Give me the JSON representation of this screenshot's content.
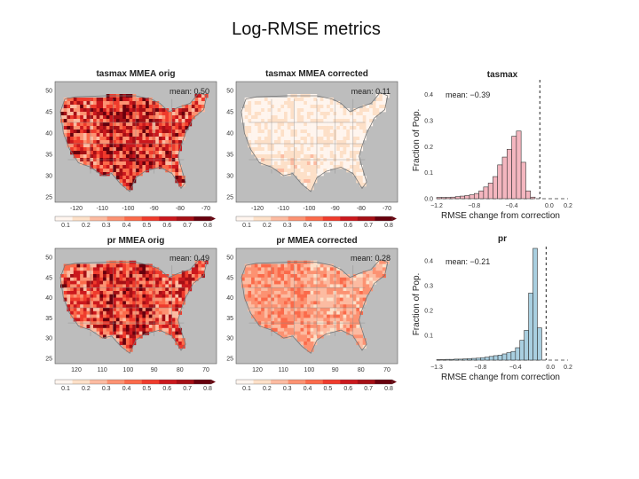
{
  "slide": {
    "title": "Log-RMSE metrics"
  },
  "colors": {
    "map_scale": [
      "#fff5ee",
      "#fde0c8",
      "#fcbba1",
      "#fc9272",
      "#fb6a4a",
      "#ef3b2c",
      "#cb181d",
      "#a50f15",
      "#67000d"
    ],
    "map_background": "#bdbdbd",
    "tasmax_bar": "#f4b6bf",
    "pr_bar": "#a9cfe0"
  },
  "maps": [
    {
      "title": "tasmax MMEA orig",
      "mean_label": "mean: 0.50",
      "mean": 0.5,
      "ytick_labels": [
        "50",
        "45",
        "40",
        "35",
        "30",
        "25"
      ],
      "xtick_labels": [
        "-120",
        "-110",
        "-100",
        "-90",
        "-80",
        "-70"
      ],
      "colorbar_labels": [
        "0.1",
        "0.2",
        "0.3",
        "0.4",
        "0.5",
        "0.6",
        "0.7",
        "0.8"
      ]
    },
    {
      "title": "tasmax MMEA corrected",
      "mean_label": "mean: 0.11",
      "mean": 0.11,
      "ytick_labels": [
        "50",
        "45",
        "40",
        "35",
        "30",
        "25"
      ],
      "xtick_labels": [
        "-120",
        "-110",
        "-100",
        "-90",
        "-80",
        "-70"
      ],
      "colorbar_labels": [
        "0.1",
        "0.2",
        "0.3",
        "0.4",
        "0.5",
        "0.6",
        "0.7",
        "0.8"
      ]
    },
    {
      "title": "pr MMEA orig",
      "mean_label": "mean: 0.49",
      "mean": 0.49,
      "ytick_labels": [
        "50",
        "45",
        "40",
        "35",
        "30",
        "25"
      ],
      "xtick_labels": [
        "120",
        "110",
        "100",
        "90",
        "80",
        "70"
      ],
      "colorbar_labels": [
        "0.1",
        "0.2",
        "0.3",
        "0.4",
        "0.5",
        "0.6",
        "0.7",
        "0.8"
      ]
    },
    {
      "title": "pr MMEA corrected",
      "mean_label": "mean: 0.28",
      "mean": 0.28,
      "ytick_labels": [
        "50",
        "45",
        "40",
        "35",
        "30",
        "25"
      ],
      "xtick_labels": [
        "120",
        "110",
        "100",
        "90",
        "80",
        "70"
      ],
      "colorbar_labels": [
        "0.1",
        "0.2",
        "0.3",
        "0.4",
        "0.5",
        "0.6",
        "0.7",
        "0.8"
      ]
    }
  ],
  "chart_data": [
    {
      "type": "bar",
      "title": "tasmax",
      "mean_label": "mean: −0.39",
      "xlabel": "RMSE change from correction",
      "ylabel": "Fraction of Pop.",
      "xlim": [
        -1.2,
        0.2
      ],
      "ylim": [
        0,
        0.45
      ],
      "xtick_labels": [
        "−1.2",
        "−0.8",
        "−0.4",
        "0.0",
        "0.2"
      ],
      "ytick_labels": [
        "0.0",
        "0.1",
        "0.2",
        "0.3",
        "0.4"
      ],
      "bin_width": 0.05,
      "bin_starts": [
        -1.2,
        -1.15,
        -1.1,
        -1.05,
        -1.0,
        -0.95,
        -0.9,
        -0.85,
        -0.8,
        -0.75,
        -0.7,
        -0.65,
        -0.6,
        -0.55,
        -0.5,
        -0.45,
        -0.4,
        -0.35,
        -0.3,
        -0.25,
        -0.2
      ],
      "values": [
        0.005,
        0.005,
        0.005,
        0.006,
        0.008,
        0.01,
        0.012,
        0.015,
        0.02,
        0.03,
        0.045,
        0.06,
        0.085,
        0.13,
        0.16,
        0.19,
        0.24,
        0.26,
        0.14,
        0.03,
        0.006
      ],
      "reference_line_x": -0.1,
      "grid": false
    },
    {
      "type": "bar",
      "title": "pr",
      "mean_label": "mean: −0.21",
      "xlabel": "RMSE change from correction",
      "ylabel": "Fraction of Pop.",
      "xlim": [
        -1.3,
        0.2
      ],
      "ylim": [
        0,
        0.45
      ],
      "xtick_labels": [
        "−1.3",
        "−0.8",
        "−0.4",
        "0.0",
        "0.2"
      ],
      "ytick_labels": [
        "0.1",
        "0.2",
        "0.3",
        "0.4"
      ],
      "bin_width": 0.05,
      "bin_starts": [
        -1.3,
        -1.25,
        -1.2,
        -1.15,
        -1.1,
        -1.05,
        -1.0,
        -0.95,
        -0.9,
        -0.85,
        -0.8,
        -0.75,
        -0.7,
        -0.65,
        -0.6,
        -0.55,
        -0.5,
        -0.45,
        -0.4,
        -0.35,
        -0.3,
        -0.25,
        -0.2,
        -0.15
      ],
      "values": [
        0.002,
        0.002,
        0.003,
        0.003,
        0.004,
        0.004,
        0.005,
        0.006,
        0.007,
        0.008,
        0.01,
        0.012,
        0.015,
        0.018,
        0.02,
        0.025,
        0.03,
        0.035,
        0.05,
        0.08,
        0.12,
        0.27,
        0.45,
        0.13
      ],
      "reference_line_x": -0.05,
      "grid": false
    }
  ]
}
